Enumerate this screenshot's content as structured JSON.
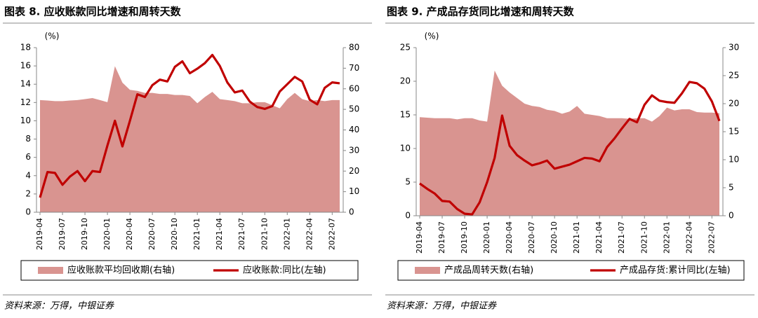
{
  "chart_data": [
    {
      "type": "combo",
      "title": "图表 8. 应收账款同比增速和周转天数",
      "y_unit": "(%)",
      "categories": [
        "2019-04",
        null,
        null,
        "2019-07",
        null,
        null,
        "2019-10",
        null,
        null,
        "2020-01",
        null,
        null,
        "2020-04",
        null,
        null,
        "2020-07",
        null,
        null,
        "2020-10",
        null,
        null,
        "2021-01",
        null,
        null,
        "2021-04",
        null,
        null,
        "2021-07",
        null,
        null,
        "2021-10",
        null,
        null,
        "2022-01",
        null,
        null,
        "2022-04",
        null,
        null,
        "2022-07",
        null
      ],
      "ylim": [
        0,
        18
      ],
      "yticks": [
        0,
        2,
        4,
        6,
        8,
        10,
        12,
        14,
        16,
        18
      ],
      "y2lim": [
        0,
        80
      ],
      "y2ticks": [
        0,
        10,
        20,
        30,
        40,
        50,
        60,
        70,
        80
      ],
      "series": [
        {
          "name": "应收账款平均回收期(右轴)",
          "type": "area",
          "axis": "y2",
          "color": "#d99490",
          "values": [
            54.5,
            54.3,
            54,
            54,
            54.3,
            54.5,
            55,
            55.5,
            54.5,
            53.5,
            71,
            63,
            59.5,
            59,
            58,
            58,
            57.5,
            57.5,
            57,
            57,
            56.5,
            53,
            56,
            58.5,
            55,
            54.5,
            54,
            53,
            53,
            53.5,
            53.5,
            52,
            50.5,
            55,
            58,
            55,
            54,
            54.5,
            54,
            54.5,
            54.5
          ]
        },
        {
          "name": "应收账款:同比(左轴)",
          "type": "line",
          "axis": "y",
          "color": "#c00000",
          "values": [
            1.6,
            4.4,
            4.3,
            3.0,
            3.9,
            4.5,
            3.4,
            4.5,
            4.4,
            7.3,
            10.0,
            7.2,
            10.0,
            12.9,
            12.6,
            13.9,
            14.5,
            14.3,
            15.9,
            16.5,
            15.2,
            15.7,
            16.3,
            17.2,
            16.0,
            14.2,
            13.1,
            13.3,
            12.1,
            11.5,
            11.3,
            11.6,
            13.2,
            14.0,
            14.8,
            14.3,
            12.3,
            11.8,
            13.6,
            14.2,
            14.1
          ]
        }
      ],
      "source": "资料来源：万得，中银证券"
    },
    {
      "type": "combo",
      "title": "图表 9. 产成品存货同比增速和周转天数",
      "y_unit": "(%)",
      "categories": [
        "2019-04",
        null,
        null,
        "2019-07",
        null,
        null,
        "2019-10",
        null,
        null,
        "2020-01",
        null,
        null,
        "2020-04",
        null,
        null,
        "2020-07",
        null,
        null,
        "2020-10",
        null,
        null,
        "2021-01",
        null,
        null,
        "2021-04",
        null,
        null,
        "2021-07",
        null,
        null,
        "2021-10",
        null,
        null,
        "2022-01",
        null,
        null,
        "2022-04",
        null,
        null,
        "2022-07",
        null
      ],
      "ylim": [
        0,
        25
      ],
      "yticks": [
        0,
        5,
        10,
        15,
        20,
        25
      ],
      "y2lim": [
        0,
        30
      ],
      "y2ticks": [
        0,
        5,
        10,
        15,
        20,
        25,
        30
      ],
      "series": [
        {
          "name": "产成品周转天数(右轴)",
          "type": "area",
          "axis": "y2",
          "color": "#d99490",
          "values": [
            17.6,
            17.5,
            17.4,
            17.4,
            17.4,
            17.2,
            17.4,
            17.4,
            17.0,
            16.8,
            25.9,
            23.2,
            22.0,
            21.0,
            20.0,
            19.6,
            19.4,
            18.9,
            18.7,
            18.2,
            18.6,
            19.6,
            18.2,
            18.0,
            17.8,
            17.4,
            17.4,
            17.4,
            17.3,
            17.4,
            17.4,
            16.8,
            17.8,
            19.3,
            18.8,
            19.0,
            19.0,
            18.5,
            18.4,
            18.4,
            18.3
          ]
        },
        {
          "name": "产成品存货:累计同比(左轴)",
          "type": "line",
          "axis": "y",
          "color": "#c00000",
          "values": [
            4.8,
            4.0,
            3.3,
            2.2,
            2.1,
            1.0,
            0.3,
            0.2,
            2.0,
            5.0,
            8.6,
            14.9,
            10.4,
            9.0,
            8.2,
            7.5,
            7.8,
            8.2,
            7.0,
            7.3,
            7.6,
            8.1,
            8.6,
            8.5,
            8.1,
            10.2,
            11.5,
            13.0,
            14.4,
            13.9,
            16.5,
            17.9,
            17.1,
            16.9,
            16.8,
            18.2,
            19.9,
            19.7,
            18.9,
            17.0,
            14.1
          ]
        }
      ],
      "source": "资料来源：万得，中银证券"
    }
  ]
}
